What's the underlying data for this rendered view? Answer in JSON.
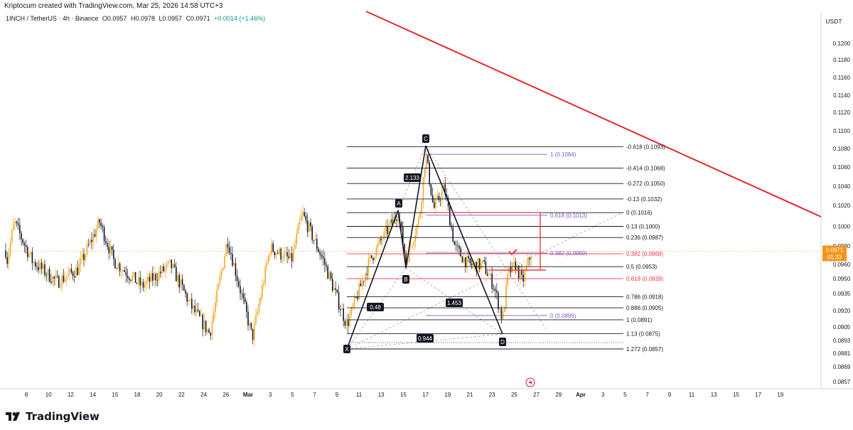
{
  "header": "Kriptocum created with TradingView.com, Mar 25, 2026 14:58 UTC+3",
  "legend": {
    "symbol": "1INCH / TetherUS · 4h · Binance",
    "open": "O0.0957",
    "high": "H0.0978",
    "low": "L0.0957",
    "close": "C0.0971",
    "change": "+0.0014 (+1.46%)"
  },
  "footer": {
    "brand": "TradingView"
  },
  "colors": {
    "up": "#f0a820",
    "down": "#131722",
    "trend": "#e8262b",
    "fib_red": "#f23645",
    "fib_purple": "#7e57c2",
    "harmonic": "#131722",
    "price_badge": "#f7931a"
  },
  "chart_data": {
    "type": "candlestick",
    "currency": "USDT",
    "price_axis_ticks": [
      "0.1200",
      "0.1180",
      "0.1160",
      "0.1140",
      "0.1120",
      "0.1100",
      "0.1080",
      "0.1060",
      "0.1040",
      "0.1020",
      "0.1000",
      "0.0980",
      "0.0960",
      "0.0950",
      "0.0935",
      "0.0920",
      "0.0905",
      "0.0893",
      "0.0881",
      "0.0869",
      "0.0857"
    ],
    "time_axis_ticks": [
      "8",
      "10",
      "12",
      "14",
      "15",
      "18",
      "20",
      "22",
      "24",
      "26",
      "Mar",
      "3",
      "5",
      "7",
      "9",
      "11",
      "13",
      "15",
      "17",
      "19",
      "21",
      "23",
      "25",
      "27",
      "29",
      "Apr",
      "3",
      "5",
      "7",
      "9",
      "11",
      "13",
      "15",
      "17",
      "19"
    ],
    "current_price": "0.0971",
    "countdown": "01:33",
    "harmonic_points": [
      {
        "label": "X",
        "price": 0.0885
      },
      {
        "label": "A",
        "price": 0.1017
      },
      {
        "label": "B",
        "price": 0.096
      },
      {
        "label": "C",
        "price": 0.1085
      },
      {
        "label": "D",
        "price": 0.0891
      }
    ],
    "harmonic_ratios": [
      "2.133",
      "0.48",
      "1.453",
      "0.944"
    ],
    "fib_levels_black": [
      {
        "label": "-0.618 (0.1093)",
        "price": 0.1093
      },
      {
        "label": "-0.414 (0.1068)",
        "price": 0.1068
      },
      {
        "label": "-0.272 (0.1050)",
        "price": 0.105
      },
      {
        "label": "-0.13 (0.1032)",
        "price": 0.1032
      },
      {
        "label": "0 (0.1016)",
        "price": 0.1016
      },
      {
        "label": "0.13 (0.1000)",
        "price": 0.1
      },
      {
        "label": "0.236 (0.0987)",
        "price": 0.0987
      },
      {
        "label": "0.382 (0.0968)",
        "price": 0.0968,
        "color": "red"
      },
      {
        "label": "0.5 (0.0953)",
        "price": 0.0953
      },
      {
        "label": "0.618 (0.0939)",
        "price": 0.0939,
        "color": "red"
      },
      {
        "label": "0.786 (0.0918)",
        "price": 0.0918
      },
      {
        "label": "0.886 (0.0905)",
        "price": 0.0905
      },
      {
        "label": "1 (0.0891)",
        "price": 0.0891
      },
      {
        "label": "1.13 (0.0875)",
        "price": 0.0875
      },
      {
        "label": "1.272 (0.0857)",
        "price": 0.0857
      }
    ],
    "fib_levels_purple": [
      {
        "label": "1 (0.1084)",
        "price": 0.1084
      },
      {
        "label": "0.618 (0.1013)",
        "price": 0.1013
      },
      {
        "label": "0.382 (0.0969)",
        "price": 0.0969
      },
      {
        "label": "0 (0.0896)",
        "price": 0.0896
      }
    ]
  }
}
